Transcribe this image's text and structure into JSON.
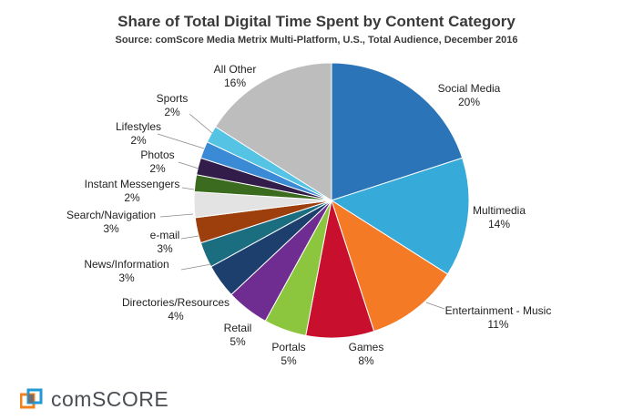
{
  "brand": {
    "logo_text": "comSCORE",
    "logo_colors": [
      "#f0821e",
      "#1f9ad6",
      "#6d6e71"
    ]
  },
  "chart_data": {
    "type": "pie",
    "title": "Share of Total Digital Time Spent by Content Category",
    "subtitle": "Source: comScore Media Metrix Multi-Platform, U.S., Total Audience, December 2016",
    "start_angle_deg": 0,
    "direction": "clockwise",
    "slices": [
      {
        "label": "Social Media",
        "pct_label": "20%",
        "value": 20,
        "color": "#2b74b8"
      },
      {
        "label": "Multimedia",
        "pct_label": "14%",
        "value": 14,
        "color": "#36aad9"
      },
      {
        "label": "Entertainment - Music",
        "pct_label": "11%",
        "value": 11,
        "color": "#f47a25"
      },
      {
        "label": "Games",
        "pct_label": "8%",
        "value": 8,
        "color": "#c8102e"
      },
      {
        "label": "Portals",
        "pct_label": "5%",
        "value": 5,
        "color": "#8cc63f"
      },
      {
        "label": "Retail",
        "pct_label": "5%",
        "value": 5,
        "color": "#6f2c91"
      },
      {
        "label": "Directories/Resources",
        "pct_label": "4%",
        "value": 4,
        "color": "#1c3f6e"
      },
      {
        "label": "News/Information",
        "pct_label": "3%",
        "value": 3,
        "color": "#1b6d80"
      },
      {
        "label": "e-mail",
        "pct_label": "3%",
        "value": 3,
        "color": "#9c3f0d"
      },
      {
        "label": "Search/Navigation",
        "pct_label": "3%",
        "value": 3,
        "color": "#e3e3e3"
      },
      {
        "label": "Instant Messengers",
        "pct_label": "2%",
        "value": 2,
        "color": "#3b6b1e"
      },
      {
        "label": "Photos",
        "pct_label": "2%",
        "value": 2,
        "color": "#321c4a"
      },
      {
        "label": "Lifestyles",
        "pct_label": "2%",
        "value": 2,
        "color": "#3a8ad6"
      },
      {
        "label": "Sports",
        "pct_label": "2%",
        "value": 2,
        "color": "#55c3e3"
      },
      {
        "label": "All Other",
        "pct_label": "16%",
        "value": 16,
        "color": "#bdbdbd"
      }
    ]
  }
}
